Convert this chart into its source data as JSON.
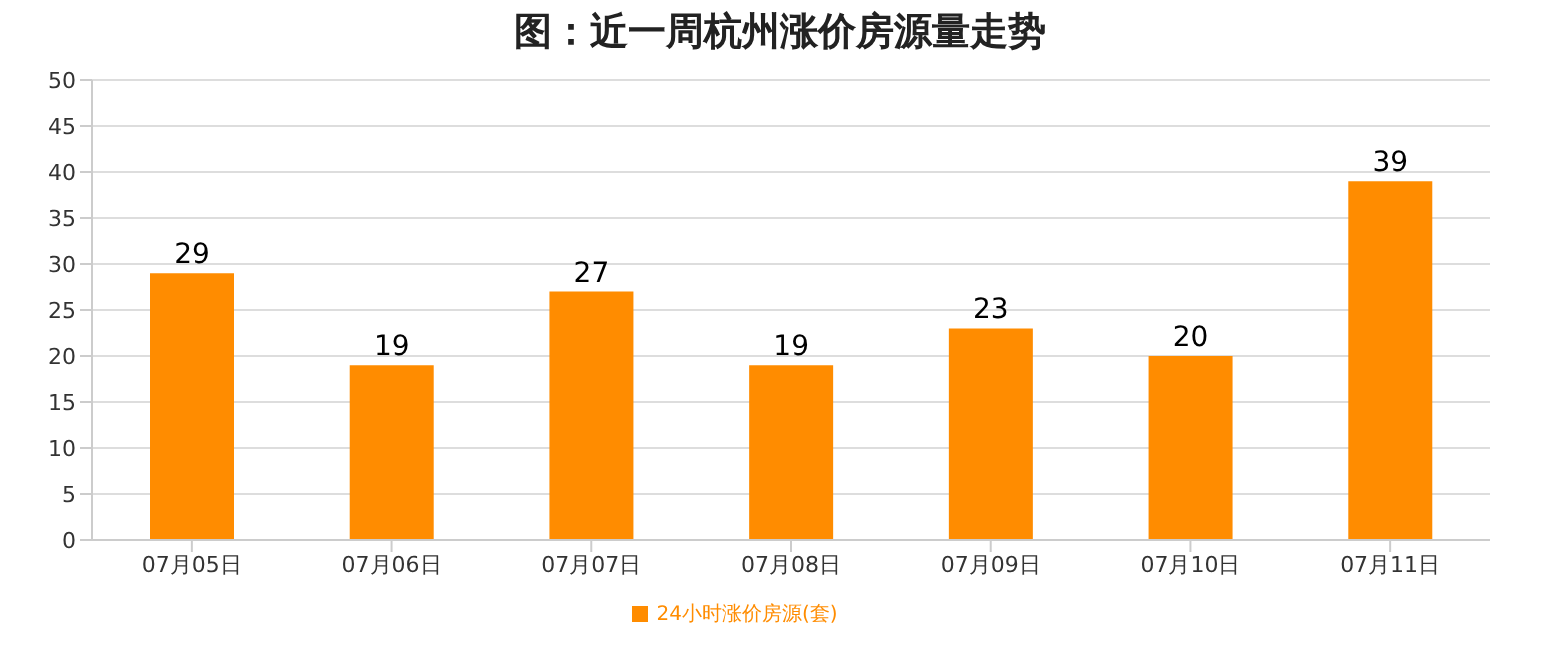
{
  "chart_data": {
    "type": "bar",
    "title": "图：近一周杭州涨价房源量走势",
    "categories": [
      "07月05日",
      "07月06日",
      "07月07日",
      "07月08日",
      "07月09日",
      "07月10日",
      "07月11日"
    ],
    "series": [
      {
        "name": "24小时涨价房源(套)",
        "color": "#ff8c00",
        "values": [
          29,
          19,
          27,
          19,
          23,
          20,
          39
        ]
      }
    ],
    "ylim": [
      0,
      50
    ],
    "yticks": [
      0,
      5,
      10,
      15,
      20,
      25,
      30,
      35,
      40,
      45,
      50
    ],
    "grid": "y",
    "legend": "bottom",
    "data_labels": true
  }
}
